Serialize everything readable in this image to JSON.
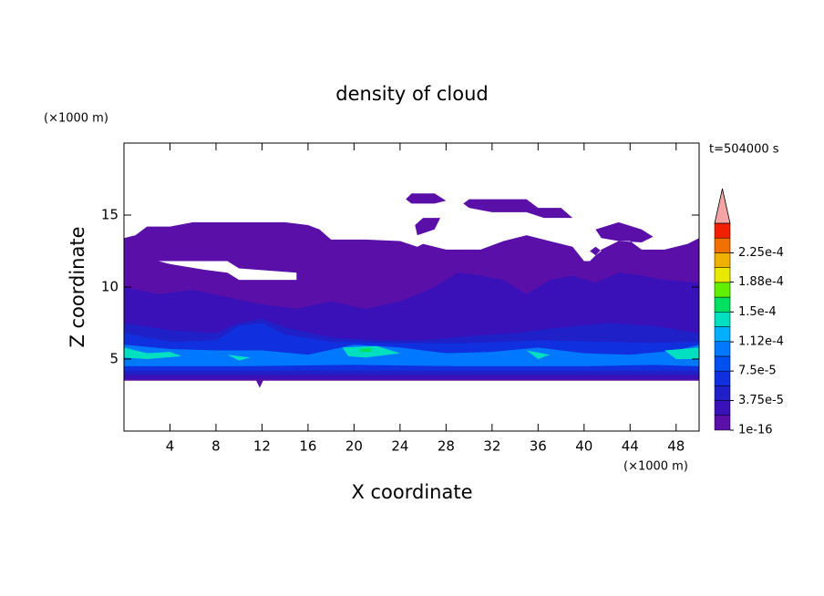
{
  "chart_data": {
    "type": "contour",
    "title": "density of cloud",
    "xlabel": "X coordinate",
    "ylabel": "Z coordinate",
    "xunit": "(×1000 m)",
    "yunit": "(×1000 m)",
    "time_label": "t=504000 s",
    "xlim": [
      0,
      50
    ],
    "ylim": [
      0,
      20
    ],
    "xticks": [
      4,
      8,
      12,
      16,
      20,
      24,
      28,
      32,
      36,
      40,
      44,
      48
    ],
    "yticks": [
      5,
      10,
      15
    ],
    "colorbar": {
      "colors": [
        "#5a10a8",
        "#3a10b8",
        "#2020c8",
        "#1030e0",
        "#0050f0",
        "#0078ff",
        "#00b0ff",
        "#00e0c0",
        "#00e060",
        "#60f000",
        "#e8e800",
        "#f0b000",
        "#f07000",
        "#f02000"
      ],
      "over_color": "#f4a4a4",
      "clim": [
        1e-16,
        0.0002625
      ],
      "ticks": [
        {
          "value": 1e-16,
          "label": "1e-16"
        },
        {
          "value": 3.75e-05,
          "label": "3.75e-5"
        },
        {
          "value": 7.5e-05,
          "label": "7.5e-5"
        },
        {
          "value": 0.000112,
          "label": "1.12e-4"
        },
        {
          "value": 0.00015,
          "label": "1.5e-4"
        },
        {
          "value": 0.000188,
          "label": "1.88e-4"
        },
        {
          "value": 0.000225,
          "label": "2.25e-4"
        }
      ]
    },
    "regions": [
      {
        "level": 0,
        "rings": [
          {
            "x": [
              0,
              11.5,
              11.8,
              12.1,
              50,
              50,
              49,
              47,
              45,
              44,
              43,
              41.5,
              40.5,
              40,
              39,
              37,
              35,
              33,
              31,
              28,
              26,
              25.5,
              24,
              21,
              18,
              17,
              16,
              14,
              11,
              6,
              4,
              2,
              1,
              0
            ],
            "z": [
              3.5,
              3.5,
              3.0,
              3.5,
              3.5,
              13.4,
              13,
              12.6,
              12.6,
              13.2,
              13.2,
              12.6,
              11.8,
              11.8,
              12.8,
              13.2,
              13.6,
              13.2,
              12.6,
              12.6,
              13,
              12.8,
              13.2,
              13.3,
              13.3,
              14,
              14.3,
              14.5,
              14.5,
              14.5,
              14.2,
              14.2,
              13.6,
              13.4
            ]
          },
          {
            "x": [
              3,
              9,
              10,
              15,
              15,
              10,
              9,
              7,
              4
            ],
            "z": [
              11.8,
              11.8,
              11.3,
              11,
              10.5,
              10.5,
              11,
              11.2,
              11.6
            ]
          },
          {
            "x": [
              25,
              27,
              28,
              27,
              25,
              24.5
            ],
            "z": [
              16.5,
              16.5,
              16,
              15.8,
              15.8,
              16.1
            ]
          },
          {
            "x": [
              30,
              35,
              36,
              38,
              39,
              36.5,
              35,
              32,
              30,
              29.5
            ],
            "z": [
              16.1,
              16.1,
              15.5,
              15.5,
              14.8,
              14.8,
              15.2,
              15.2,
              15.5,
              15.8
            ]
          },
          {
            "x": [
              26,
              27.5,
              27,
              25.5,
              25.3
            ],
            "z": [
              14.8,
              14.8,
              14,
              13.6,
              14.3
            ]
          },
          {
            "x": [
              41,
              43,
              45,
              46,
              45,
              43,
              41.5
            ],
            "z": [
              14,
              14.5,
              14,
              13.5,
              13.1,
              13.2,
              13.4
            ]
          },
          {
            "x": [
              41,
              41.5,
              41,
              40.5
            ],
            "z": [
              12.8,
              12.5,
              12.2,
              12.5
            ]
          }
        ]
      },
      {
        "level": 1,
        "rings": [
          {
            "x": [
              0,
              3,
              6,
              9,
              12,
              15,
              18,
              21,
              24,
              27,
              29,
              31,
              33,
              35,
              37,
              39,
              41,
              43,
              45,
              47,
              50,
              50,
              0
            ],
            "z": [
              10,
              9.5,
              9.8,
              9.3,
              8.8,
              8.5,
              9,
              8.5,
              9,
              10,
              11,
              10.8,
              10.5,
              9.5,
              10.5,
              10.8,
              10.3,
              11,
              10.8,
              10.5,
              10.3,
              3.6,
              3.6
            ]
          }
        ]
      },
      {
        "level": 2,
        "rings": [
          {
            "x": [
              0,
              4,
              8,
              10,
              12,
              14,
              18,
              22,
              26,
              30,
              34,
              38,
              42,
              46,
              50,
              50,
              0
            ],
            "z": [
              7.5,
              7,
              6.8,
              7.5,
              7.8,
              7.2,
              6.5,
              6.3,
              6.3,
              6.6,
              6.8,
              7.2,
              7.5,
              7.3,
              6.8,
              3.9,
              3.9
            ]
          }
        ]
      },
      {
        "level": 3,
        "rings": [
          {
            "x": [
              0,
              4,
              8,
              10,
              12,
              14,
              18,
              24,
              30,
              36,
              42,
              46,
              50,
              50,
              0
            ],
            "z": [
              6.8,
              6.2,
              6.3,
              7.3,
              7.5,
              6.7,
              6.2,
              6.1,
              6.1,
              6.3,
              6.2,
              6.1,
              6.2,
              4.2,
              4.2
            ]
          }
        ]
      },
      {
        "level": 5,
        "rings": [
          {
            "x": [
              0,
              4,
              8,
              12,
              16,
              20,
              24,
              28,
              32,
              36,
              40,
              44,
              48,
              50,
              50,
              46,
              40,
              30,
              20,
              10,
              0
            ],
            "z": [
              6.0,
              5.7,
              5.6,
              5.6,
              5.3,
              6.0,
              5.8,
              5.4,
              5.5,
              5.8,
              5.4,
              5.3,
              5.6,
              6,
              4.5,
              4.6,
              4.5,
              4.5,
              4.6,
              4.5,
              4.5
            ]
          }
        ]
      },
      {
        "level": 7,
        "rings": [
          {
            "x": [
              0,
              2,
              4,
              5,
              2,
              0
            ],
            "z": [
              5.8,
              5.4,
              5.5,
              5.2,
              5,
              5.1
            ]
          },
          {
            "x": [
              9,
              11,
              10
            ],
            "z": [
              5.3,
              5.1,
              4.9
            ]
          },
          {
            "x": [
              19,
              22,
              24,
              21,
              19.5
            ],
            "z": [
              5.8,
              5.9,
              5.4,
              5.1,
              5.2
            ]
          },
          {
            "x": [
              35,
              37,
              36
            ],
            "z": [
              5.6,
              5.3,
              5.0
            ]
          },
          {
            "x": [
              47,
              50,
              50,
              48
            ],
            "z": [
              5.6,
              5.8,
              5.0,
              5.0
            ]
          }
        ]
      },
      {
        "level": 8,
        "rings": [
          {
            "x": [
              20.5,
              21.5,
              21.5,
              20.5
            ],
            "z": [
              5.7,
              5.8,
              5.5,
              5.5
            ]
          }
        ]
      }
    ]
  }
}
